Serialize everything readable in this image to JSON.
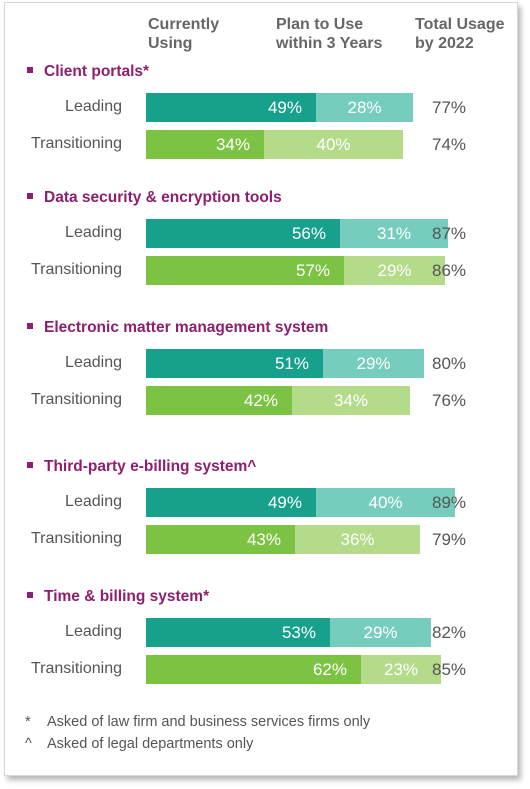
{
  "columns": {
    "current": "Currently\nUsing",
    "plan": "Plan to Use\nwithin 3 Years",
    "total": "Total Usage\nby 2022"
  },
  "colors": {
    "leading_current": "#17a08c",
    "leading_plan": "#76cdbd",
    "transitioning_current": "#7cc243",
    "transitioning_plan": "#b3db8a",
    "section_title": "#8e1e6e"
  },
  "chart_data": {
    "type": "bar",
    "orientation": "horizontal",
    "stacked": true,
    "series_names": [
      "Currently Using",
      "Plan to Use within 3 Years"
    ],
    "groups": [
      {
        "title": "Client portals*",
        "rows": [
          {
            "label": "Leading",
            "current": 49,
            "plan": 28,
            "total": 77
          },
          {
            "label": "Transitioning",
            "current": 34,
            "plan": 40,
            "total": 74
          }
        ]
      },
      {
        "title": "Data security & encryption tools",
        "rows": [
          {
            "label": "Leading",
            "current": 56,
            "plan": 31,
            "total": 87
          },
          {
            "label": "Transitioning",
            "current": 57,
            "plan": 29,
            "total": 86
          }
        ]
      },
      {
        "title": "Electronic matter management system",
        "rows": [
          {
            "label": "Leading",
            "current": 51,
            "plan": 29,
            "total": 80
          },
          {
            "label": "Transitioning",
            "current": 42,
            "plan": 34,
            "total": 76
          }
        ]
      },
      {
        "title": "Third-party e-billing system^",
        "rows": [
          {
            "label": "Leading",
            "current": 49,
            "plan": 40,
            "total": 89
          },
          {
            "label": "Transitioning",
            "current": 43,
            "plan": 36,
            "total": 79
          }
        ]
      },
      {
        "title": "Time & billing system*",
        "rows": [
          {
            "label": "Leading",
            "current": 53,
            "plan": 29,
            "total": 82
          },
          {
            "label": "Transitioning",
            "current": 62,
            "plan": 23,
            "total": 85
          }
        ]
      }
    ]
  },
  "footnotes": [
    {
      "mark": "*",
      "text": "Asked of law firm and business services firms only"
    },
    {
      "mark": "^",
      "text": "Asked of legal departments only"
    }
  ]
}
